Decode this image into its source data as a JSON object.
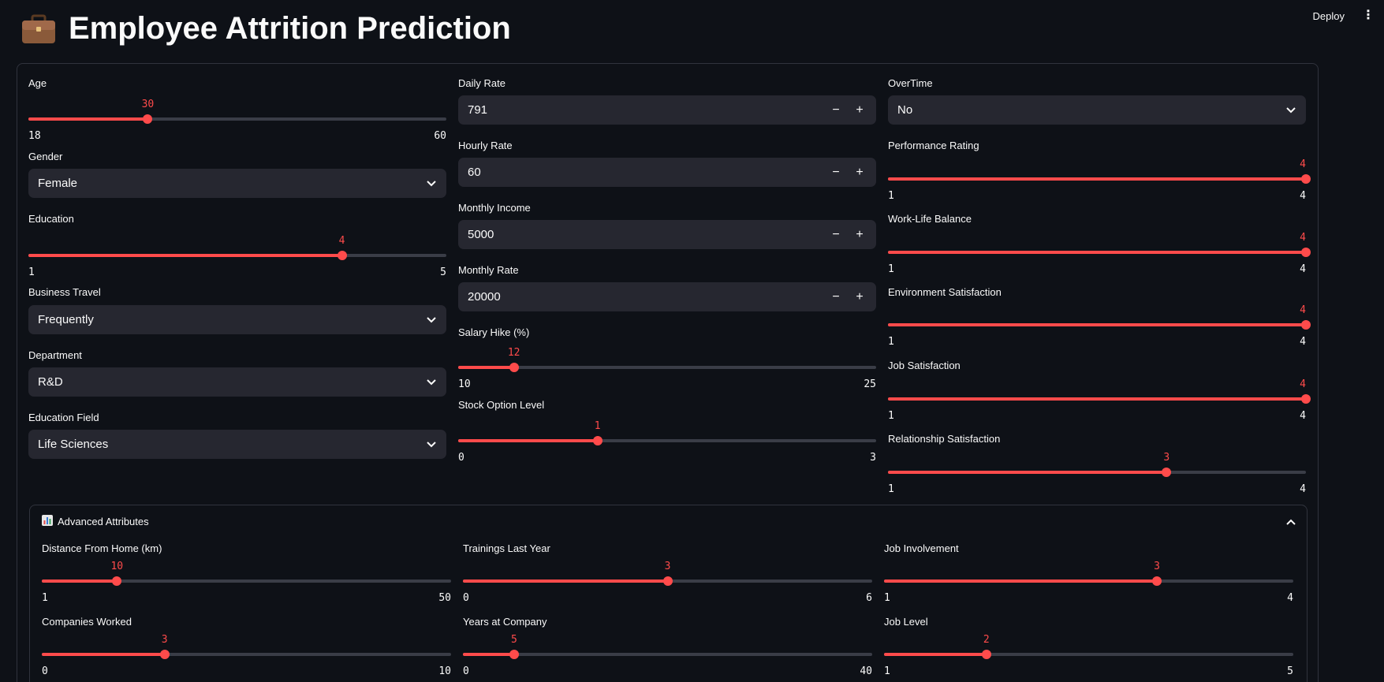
{
  "header": {
    "title": "Employee Attrition Prediction",
    "icon": "briefcase-icon",
    "deploy_label": "Deploy",
    "menu_icon": "kebab-menu-icon"
  },
  "colors": {
    "accent": "#ff4b4b",
    "background": "#0e1117",
    "input_bg": "#262730",
    "border": "#30333d"
  },
  "left": {
    "age": {
      "label": "Age",
      "value": 30,
      "min": 18,
      "max": 60
    },
    "gender": {
      "label": "Gender",
      "value": "Female"
    },
    "education": {
      "label": "Education",
      "value": 4,
      "min": 1,
      "max": 5
    },
    "business_travel": {
      "label": "Business Travel",
      "value": "Frequently"
    },
    "department": {
      "label": "Department",
      "value": "R&D"
    },
    "education_field": {
      "label": "Education Field",
      "value": "Life Sciences"
    }
  },
  "middle": {
    "daily_rate": {
      "label": "Daily Rate",
      "value": "791"
    },
    "hourly_rate": {
      "label": "Hourly Rate",
      "value": "60"
    },
    "monthly_income": {
      "label": "Monthly Income",
      "value": "5000"
    },
    "monthly_rate": {
      "label": "Monthly Rate",
      "value": "20000"
    },
    "salary_hike": {
      "label": "Salary Hike (%)",
      "value": 12,
      "min": 10,
      "max": 25
    },
    "stock_option": {
      "label": "Stock Option Level",
      "value": 1,
      "min": 0,
      "max": 3
    }
  },
  "right": {
    "overtime": {
      "label": "OverTime",
      "value": "No"
    },
    "performance_rating": {
      "label": "Performance Rating",
      "value": 4,
      "min": 1,
      "max": 4
    },
    "work_life_balance": {
      "label": "Work-Life Balance",
      "value": 4,
      "min": 1,
      "max": 4
    },
    "environment_satisfaction": {
      "label": "Environment Satisfaction",
      "value": 4,
      "min": 1,
      "max": 4
    },
    "job_satisfaction": {
      "label": "Job Satisfaction",
      "value": 4,
      "min": 1,
      "max": 4
    },
    "relationship_satisfaction": {
      "label": "Relationship Satisfaction",
      "value": 3,
      "min": 1,
      "max": 4
    }
  },
  "advanced": {
    "title": "Advanced Attributes",
    "icon": "bar-chart-icon",
    "distance": {
      "label": "Distance From Home (km)",
      "value": 10,
      "min": 1,
      "max": 50
    },
    "trainings": {
      "label": "Trainings Last Year",
      "value": 3,
      "min": 0,
      "max": 6
    },
    "job_involvement": {
      "label": "Job Involvement",
      "value": 3,
      "min": 1,
      "max": 4
    },
    "companies_worked": {
      "label": "Companies Worked",
      "value": 3,
      "min": 0,
      "max": 10
    },
    "years_at_company": {
      "label": "Years at Company",
      "value": 5,
      "min": 0,
      "max": 40
    },
    "job_level": {
      "label": "Job Level",
      "value": 2,
      "min": 1,
      "max": 5
    }
  },
  "buttons": {
    "minus": "−",
    "plus": "+"
  }
}
